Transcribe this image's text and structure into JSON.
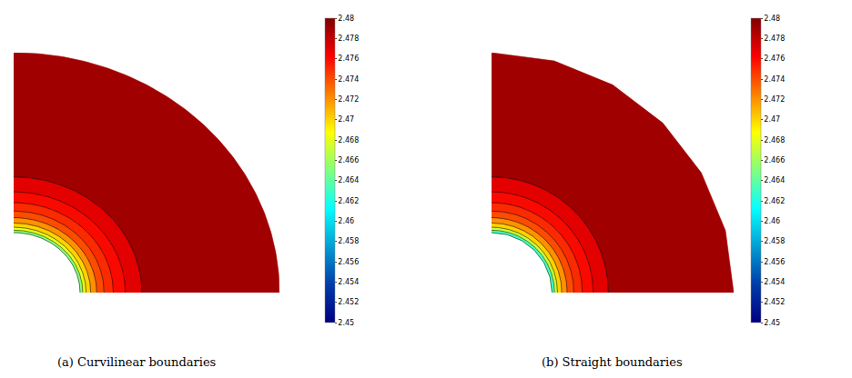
{
  "chart_data": [
    {
      "type": "contour",
      "caption": "(a) Curvilinear boundaries",
      "radii": [
        1.0,
        1.04,
        1.09,
        1.16,
        1.25,
        1.36,
        1.5,
        1.68,
        1.93,
        4.0
      ],
      "values": [
        2.465,
        2.468,
        2.47,
        2.472,
        2.474,
        2.475,
        2.476,
        2.477,
        2.479
      ],
      "color_range": [
        2.45,
        2.48
      ],
      "color_ticks": [
        2.45,
        2.452,
        2.454,
        2.456,
        2.458,
        2.46,
        2.462,
        2.464,
        2.466,
        2.468,
        2.47,
        2.472,
        2.474,
        2.476,
        2.478,
        2.48
      ]
    },
    {
      "type": "contour",
      "caption": "(b) Straight boundaries",
      "radii": [
        1.0,
        1.04,
        1.09,
        1.16,
        1.25,
        1.36,
        1.5,
        1.68,
        1.93,
        4.0
      ],
      "values": [
        2.463,
        2.467,
        2.47,
        2.472,
        2.474,
        2.475,
        2.476,
        2.477,
        2.479
      ],
      "boundary_angles": [
        0,
        15,
        30,
        45,
        60,
        75,
        90
      ],
      "color_range": [
        2.45,
        2.48
      ],
      "color_ticks": [
        2.45,
        2.452,
        2.454,
        2.456,
        2.458,
        2.46,
        2.462,
        2.464,
        2.466,
        2.468,
        2.47,
        2.472,
        2.474,
        2.476,
        2.478,
        2.48
      ]
    }
  ]
}
